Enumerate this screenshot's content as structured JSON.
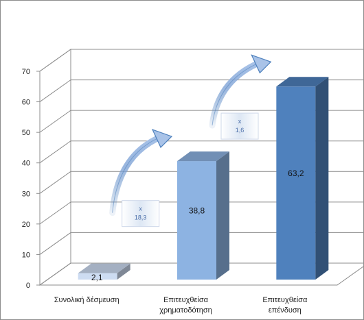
{
  "chart_data": {
    "type": "bar",
    "style": "3d-column",
    "categories": [
      [
        "Συνολική δέσμευση"
      ],
      [
        "Επιτευχθείσα",
        "χρηματοδότηση"
      ],
      [
        "Επιτευχθείσα",
        "επένδυση"
      ]
    ],
    "values": [
      2.1,
      38.8,
      63.2
    ],
    "value_labels": [
      "2,1",
      "38,8",
      "63,2"
    ],
    "ylim": [
      0,
      70
    ],
    "yticks": [
      0,
      10,
      20,
      30,
      40,
      50,
      60,
      70
    ],
    "grid": true,
    "bar_colors": [
      "#cddcf2",
      "#8db3e2",
      "#4f81bd"
    ],
    "annotations": [
      {
        "symbol": "x",
        "value": "18,3",
        "from": 0,
        "to": 1
      },
      {
        "symbol": "x",
        "value": "1,6",
        "from": 1,
        "to": 2
      }
    ],
    "arrow_color": "#4f81bd"
  }
}
